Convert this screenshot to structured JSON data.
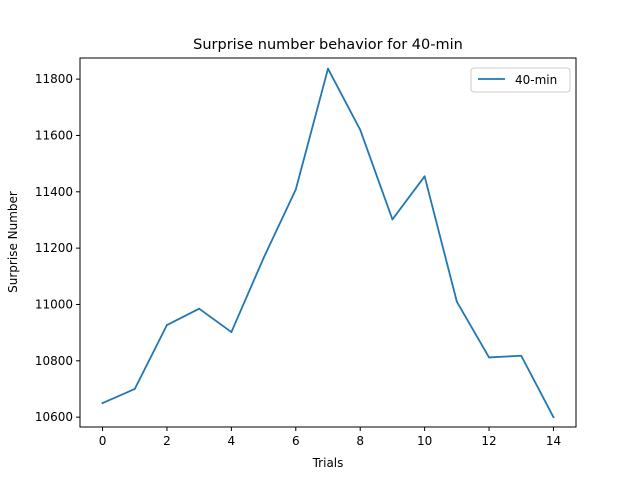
{
  "chart_data": {
    "type": "line",
    "title": "Surprise number behavior for 40-min",
    "xlabel": "Trials",
    "ylabel": "Surprise Number",
    "xlim": [
      -0.7,
      14.7
    ],
    "ylim": [
      10565,
      11875
    ],
    "xticks": [
      0,
      2,
      4,
      6,
      8,
      10,
      12,
      14
    ],
    "yticks": [
      10600,
      10800,
      11000,
      11200,
      11400,
      11600,
      11800
    ],
    "grid": false,
    "legend_position": "top-right",
    "series": [
      {
        "name": "40-min",
        "color": "#1f77b4",
        "x": [
          0,
          1,
          2,
          3,
          4,
          5,
          6,
          7,
          8,
          9,
          10,
          11,
          12,
          13,
          14
        ],
        "values": [
          10650,
          10700,
          10927,
          10985,
          10902,
          11165,
          11408,
          11837,
          11620,
          11302,
          11455,
          11010,
          10812,
          10818,
          10600
        ]
      }
    ]
  }
}
